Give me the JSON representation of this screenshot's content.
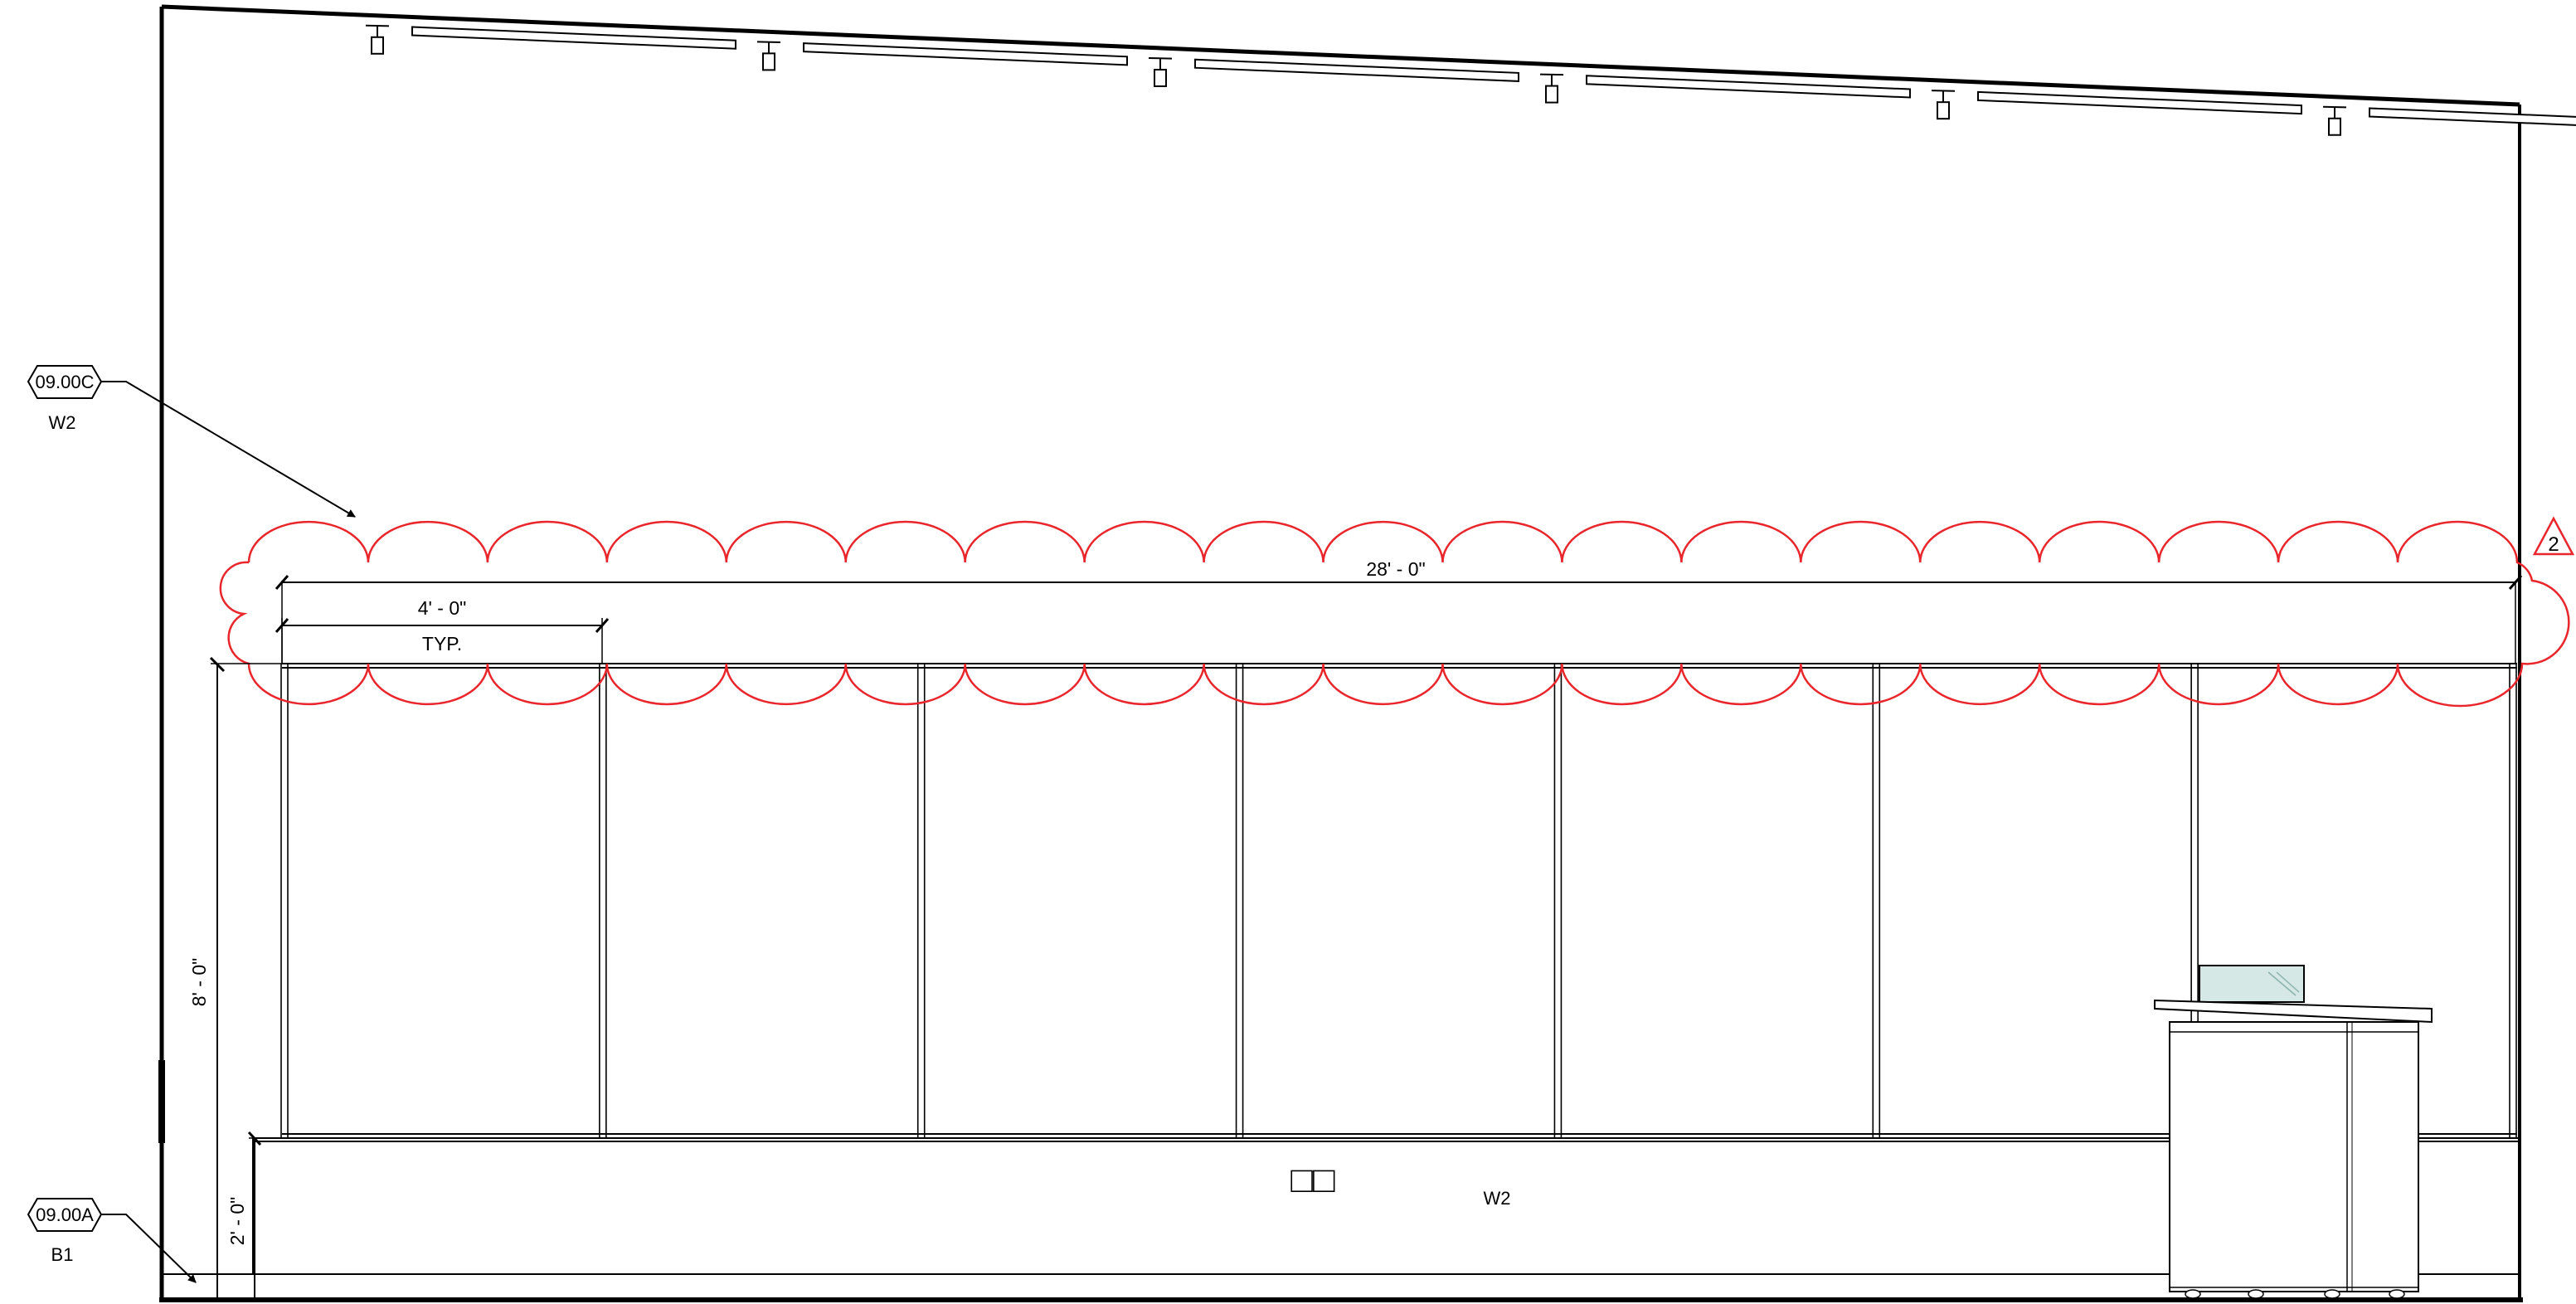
{
  "elevation": {
    "overall_dimension": "28' - 0\"",
    "panel_dimension": "4' - 0\"",
    "panel_note": "TYP.",
    "height_dimension": "8' - 0\"",
    "base_dimension": "2' - 0\"",
    "wall_label": "W2",
    "wall_characters": "□□",
    "panel_count": 7,
    "track_light_count": 6
  },
  "keynotes": [
    {
      "code": "09.00C",
      "label": "W2"
    },
    {
      "code": "09.00A",
      "label": "B1"
    }
  ],
  "revision": {
    "number": "2",
    "cloud_color": "#e8262b"
  }
}
